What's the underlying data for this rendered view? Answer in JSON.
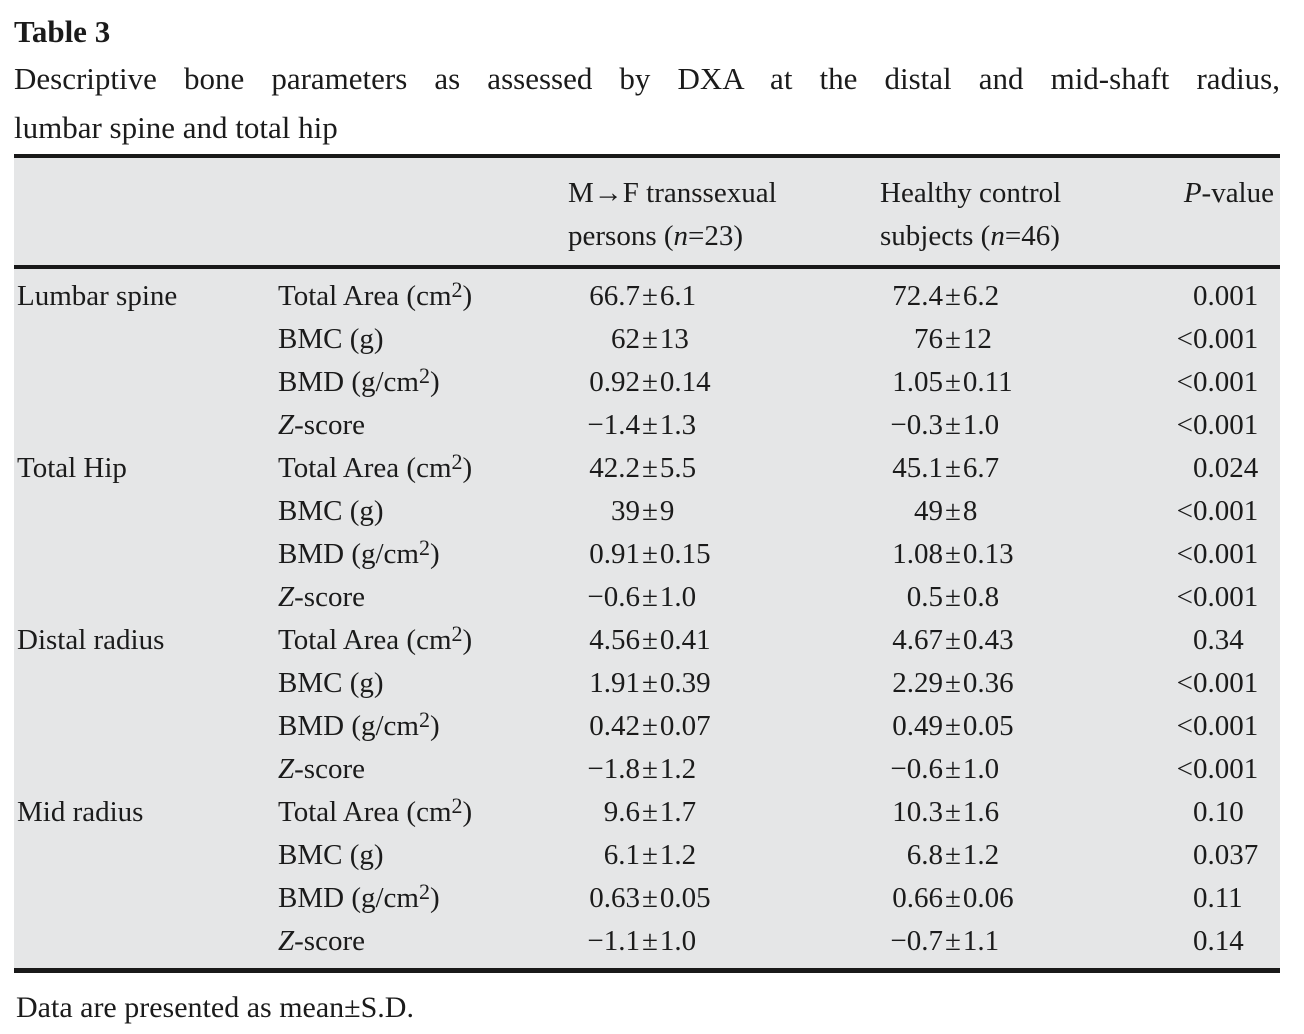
{
  "title": "Table 3",
  "caption": {
    "line1": "Descriptive bone parameters as assessed by DXA at the distal and mid-shaft radius,",
    "line2": "lumbar spine and total hip"
  },
  "footnote": "Data are presented as mean±S.D.",
  "colors": {
    "table_background": "#e5e6e7",
    "rule": "#191919",
    "text": "#1b1b1b"
  },
  "table": {
    "separator": "±",
    "columns": [
      {
        "label": ""
      },
      {
        "label": ""
      },
      {
        "label": "M→F transsexual\npersons (*n*=23)"
      },
      {
        "label": "Healthy control\nsubjects (*n*=46)"
      },
      {
        "label": "*P*-value"
      }
    ],
    "rows": [
      {
        "group": "Lumbar spine",
        "param": "Total Area (cm^2)",
        "mf": {
          "m": "66.7",
          "s": "6.1"
        },
        "hc": {
          "m": "72.4",
          "s": "6.2"
        },
        "p": "0.001"
      },
      {
        "group": "",
        "param": "BMC (g)",
        "mf": {
          "m": "62",
          "s": "13"
        },
        "hc": {
          "m": "76",
          "s": "12"
        },
        "p": "<0.001"
      },
      {
        "group": "",
        "param": "BMD (g/cm^2)",
        "mf": {
          "m": "0.92",
          "s": "0.14"
        },
        "hc": {
          "m": "1.05",
          "s": "0.11"
        },
        "p": "<0.001"
      },
      {
        "group": "",
        "param": "*Z*-score",
        "mf": {
          "m": "−1.4",
          "s": "1.3"
        },
        "hc": {
          "m": "−0.3",
          "s": "1.0"
        },
        "p": "<0.001"
      },
      {
        "group": "Total Hip",
        "param": "Total Area (cm^2)",
        "mf": {
          "m": "42.2",
          "s": "5.5"
        },
        "hc": {
          "m": "45.1",
          "s": "6.7"
        },
        "p": "0.024"
      },
      {
        "group": "",
        "param": "BMC (g)",
        "mf": {
          "m": "39",
          "s": "9"
        },
        "hc": {
          "m": "49",
          "s": "8"
        },
        "p": "<0.001"
      },
      {
        "group": "",
        "param": "BMD (g/cm^2)",
        "mf": {
          "m": "0.91",
          "s": "0.15"
        },
        "hc": {
          "m": "1.08",
          "s": "0.13"
        },
        "p": "<0.001"
      },
      {
        "group": "",
        "param": "*Z*-score",
        "mf": {
          "m": "−0.6",
          "s": "1.0"
        },
        "hc": {
          "m": "0.5",
          "s": "0.8"
        },
        "p": "<0.001"
      },
      {
        "group": "Distal radius",
        "param": "Total Area (cm^2)",
        "mf": {
          "m": "4.56",
          "s": "0.41"
        },
        "hc": {
          "m": "4.67",
          "s": "0.43"
        },
        "p": "0.34"
      },
      {
        "group": "",
        "param": "BMC (g)",
        "mf": {
          "m": "1.91",
          "s": "0.39"
        },
        "hc": {
          "m": "2.29",
          "s": "0.36"
        },
        "p": "<0.001"
      },
      {
        "group": "",
        "param": "BMD (g/cm^2)",
        "mf": {
          "m": "0.42",
          "s": "0.07"
        },
        "hc": {
          "m": "0.49",
          "s": "0.05"
        },
        "p": "<0.001"
      },
      {
        "group": "",
        "param": "*Z*-score",
        "mf": {
          "m": "−1.8",
          "s": "1.2"
        },
        "hc": {
          "m": "−0.6",
          "s": "1.0"
        },
        "p": "<0.001"
      },
      {
        "group": "Mid radius",
        "param": "Total Area (cm^2)",
        "mf": {
          "m": "9.6",
          "s": "1.7"
        },
        "hc": {
          "m": "10.3",
          "s": "1.6"
        },
        "p": "0.10"
      },
      {
        "group": "",
        "param": "BMC (g)",
        "mf": {
          "m": "6.1",
          "s": "1.2"
        },
        "hc": {
          "m": "6.8",
          "s": "1.2"
        },
        "p": "0.037"
      },
      {
        "group": "",
        "param": "BMD (g/cm^2)",
        "mf": {
          "m": "0.63",
          "s": "0.05"
        },
        "hc": {
          "m": "0.66",
          "s": "0.06"
        },
        "p": "0.11"
      },
      {
        "group": "",
        "param": "*Z*-score",
        "mf": {
          "m": "−1.1",
          "s": "1.0"
        },
        "hc": {
          "m": "−0.7",
          "s": "1.1"
        },
        "p": "0.14"
      }
    ]
  }
}
